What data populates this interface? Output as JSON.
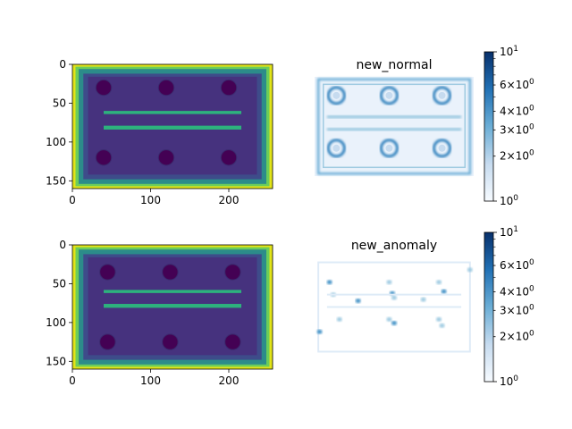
{
  "chart_data": [
    {
      "type": "heatmap",
      "panel": "top-left",
      "title": "",
      "colormap": "viridis",
      "image_shape": [
        160,
        256
      ],
      "xlim": [
        0,
        256
      ],
      "ylim": [
        160,
        0
      ],
      "xticks": [
        0,
        100,
        200
      ],
      "yticks": [
        0,
        50,
        100,
        150
      ],
      "holes": [
        {
          "x": 40,
          "y": 30
        },
        {
          "x": 120,
          "y": 30
        },
        {
          "x": 200,
          "y": 30
        },
        {
          "x": 40,
          "y": 120
        },
        {
          "x": 120,
          "y": 120
        },
        {
          "x": 200,
          "y": 120
        }
      ],
      "grooves": [
        {
          "y1": 60,
          "y2": 64
        },
        {
          "y1": 79,
          "y2": 84
        }
      ]
    },
    {
      "type": "heatmap",
      "panel": "top-right",
      "title": "new_normal",
      "colormap": "Blues",
      "scale": "log",
      "colorbar": {
        "range": [
          1,
          10
        ],
        "ticks": [
          "10^0",
          "2×10^0",
          "3×10^0",
          "4×10^0",
          "6×10^0",
          "10^1"
        ]
      }
    },
    {
      "type": "heatmap",
      "panel": "bottom-left",
      "title": "",
      "colormap": "viridis",
      "image_shape": [
        160,
        256
      ],
      "xlim": [
        0,
        256
      ],
      "ylim": [
        160,
        0
      ],
      "xticks": [
        0,
        100,
        200
      ],
      "yticks": [
        0,
        50,
        100,
        150
      ],
      "holes": [
        {
          "x": 45,
          "y": 35
        },
        {
          "x": 125,
          "y": 35
        },
        {
          "x": 205,
          "y": 35
        },
        {
          "x": 45,
          "y": 125
        },
        {
          "x": 125,
          "y": 125
        },
        {
          "x": 205,
          "y": 125
        }
      ],
      "grooves": [
        {
          "y1": 58,
          "y2": 62
        },
        {
          "y1": 76,
          "y2": 81
        }
      ]
    },
    {
      "type": "heatmap",
      "panel": "bottom-right",
      "title": "new_anomaly",
      "colormap": "Blues",
      "scale": "log",
      "colorbar": {
        "range": [
          1,
          10
        ],
        "ticks": [
          "10^0",
          "2×10^0",
          "3×10^0",
          "4×10^0",
          "6×10^0",
          "10^1"
        ]
      }
    }
  ]
}
